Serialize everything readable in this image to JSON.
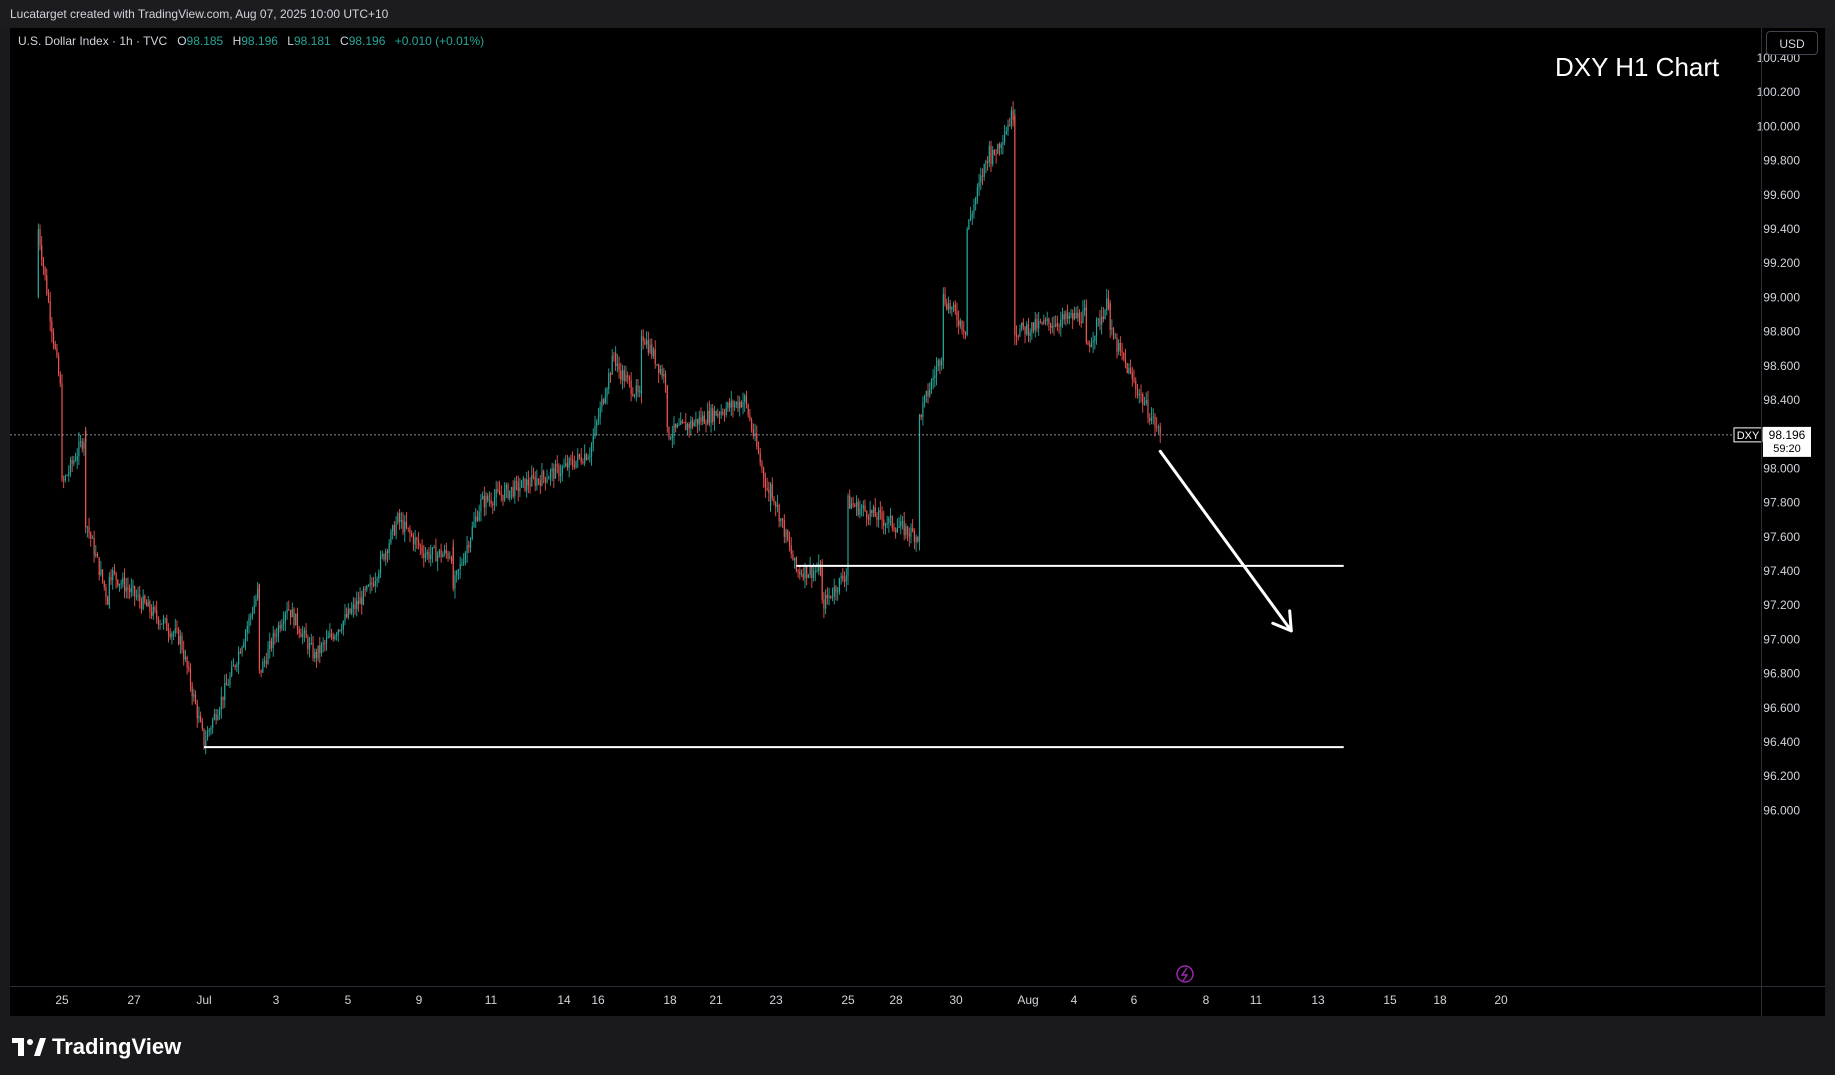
{
  "header": {
    "attribution": "Lucatarget created with TradingView.com, Aug 07, 2025 10:00 UTC+10"
  },
  "legend": {
    "symbol": "U.S. Dollar Index · 1h · TVC",
    "open_label": "O",
    "open": "98.185",
    "high_label": "H",
    "high": "98.196",
    "low_label": "L",
    "low": "98.181",
    "close_label": "C",
    "close": "98.196",
    "change": "+0.010 (+0.01%)"
  },
  "currency_button": "USD",
  "chart_title": "DXY H1 Chart",
  "price_tag": {
    "symbol": "DXY",
    "price": "98.196",
    "countdown": "59:20"
  },
  "footer": {
    "brand": "TradingView"
  },
  "colors": {
    "up": "#26a69a",
    "down": "#ef5350",
    "background": "#000000",
    "annotation": "#ffffff"
  },
  "icons": [
    "lightning-icon",
    "tradingview-logo-icon"
  ],
  "chart_data": {
    "type": "candlestick",
    "symbol": "DXY",
    "timeframe": "1h",
    "x_ticks": [
      "25",
      "27",
      "Jul",
      "3",
      "5",
      "9",
      "11",
      "14",
      "16",
      "18",
      "21",
      "23",
      "25",
      "28",
      "30",
      "Aug",
      "4",
      "6",
      "8",
      "11",
      "13",
      "15",
      "18",
      "20"
    ],
    "y_ticks": [
      "96.000",
      "96.200",
      "96.400",
      "96.600",
      "96.800",
      "97.000",
      "97.200",
      "97.400",
      "97.600",
      "97.800",
      "98.000",
      "98.200",
      "98.400",
      "98.600",
      "98.800",
      "99.000",
      "99.200",
      "99.400",
      "99.600",
      "99.800",
      "100.000",
      "100.200",
      "100.400"
    ],
    "ylim": [
      95.8,
      100.47
    ],
    "last_price": 98.196,
    "price_path": [
      {
        "x": "Jun 24",
        "y": 99.0
      },
      {
        "x": "Jun 24",
        "y": 99.4
      },
      {
        "x": "Jun 25",
        "y": 98.4
      },
      {
        "x": "Jun 25",
        "y": 97.9
      },
      {
        "x": "Jun 26",
        "y": 98.2
      },
      {
        "x": "Jun 26",
        "y": 97.7
      },
      {
        "x": "Jun 27",
        "y": 97.2
      },
      {
        "x": "Jun 27",
        "y": 97.4
      },
      {
        "x": "Jun 30",
        "y": 97.0
      },
      {
        "x": "Jul 1",
        "y": 96.4
      },
      {
        "x": "Jul 2",
        "y": 96.8
      },
      {
        "x": "Jul 3",
        "y": 97.3
      },
      {
        "x": "Jul 3",
        "y": 96.8
      },
      {
        "x": "Jul 4",
        "y": 97.2
      },
      {
        "x": "Jul 5",
        "y": 96.9
      },
      {
        "x": "Jul 7",
        "y": 97.3
      },
      {
        "x": "Jul 8",
        "y": 97.7
      },
      {
        "x": "Jul 9",
        "y": 97.5
      },
      {
        "x": "Jul 10",
        "y": 97.5
      },
      {
        "x": "Jul 10",
        "y": 97.3
      },
      {
        "x": "Jul 11",
        "y": 97.8
      },
      {
        "x": "Jul 14",
        "y": 98.0
      },
      {
        "x": "Jul 15",
        "y": 98.1
      },
      {
        "x": "Jul 16",
        "y": 98.7
      },
      {
        "x": "Jul 16",
        "y": 98.6
      },
      {
        "x": "Jul 17",
        "y": 98.4
      },
      {
        "x": "Jul 17",
        "y": 98.8
      },
      {
        "x": "Jul 18",
        "y": 98.5
      },
      {
        "x": "Jul 18",
        "y": 98.2
      },
      {
        "x": "Jul 21",
        "y": 98.4
      },
      {
        "x": "Jul 22",
        "y": 97.8
      },
      {
        "x": "Jul 22",
        "y": 97.9
      },
      {
        "x": "Jul 23",
        "y": 97.4
      },
      {
        "x": "Jul 24",
        "y": 97.4
      },
      {
        "x": "Jul 24",
        "y": 97.2
      },
      {
        "x": "Jul 25",
        "y": 97.4
      },
      {
        "x": "Jul 25",
        "y": 97.8
      },
      {
        "x": "Jul 28",
        "y": 97.6
      },
      {
        "x": "Jul 28",
        "y": 98.3
      },
      {
        "x": "Jul 29",
        "y": 98.7
      },
      {
        "x": "Jul 29",
        "y": 99.0
      },
      {
        "x": "Jul 30",
        "y": 98.8
      },
      {
        "x": "Jul 30",
        "y": 99.4
      },
      {
        "x": "Jul 31",
        "y": 99.9
      },
      {
        "x": "Jul 31",
        "y": 99.8
      },
      {
        "x": "Aug 1",
        "y": 100.1
      },
      {
        "x": "Aug 1",
        "y": 98.8
      },
      {
        "x": "Aug 4",
        "y": 98.9
      },
      {
        "x": "Aug 4",
        "y": 98.7
      },
      {
        "x": "Aug 5",
        "y": 99.0
      },
      {
        "x": "Aug 5",
        "y": 98.8
      },
      {
        "x": "Aug 6",
        "y": 98.5
      },
      {
        "x": "Aug 7",
        "y": 98.196
      }
    ],
    "annotations": {
      "levels": [
        {
          "price": 97.43,
          "from": "Jul 23",
          "to": "Aug 14"
        },
        {
          "price": 96.37,
          "from": "Jul 1",
          "to": "Aug 14"
        }
      ],
      "arrow": {
        "from": {
          "x": "Aug 7",
          "y": 98.1
        },
        "to": {
          "x": "Aug 12",
          "y": 97.05
        }
      }
    },
    "grid": false
  }
}
